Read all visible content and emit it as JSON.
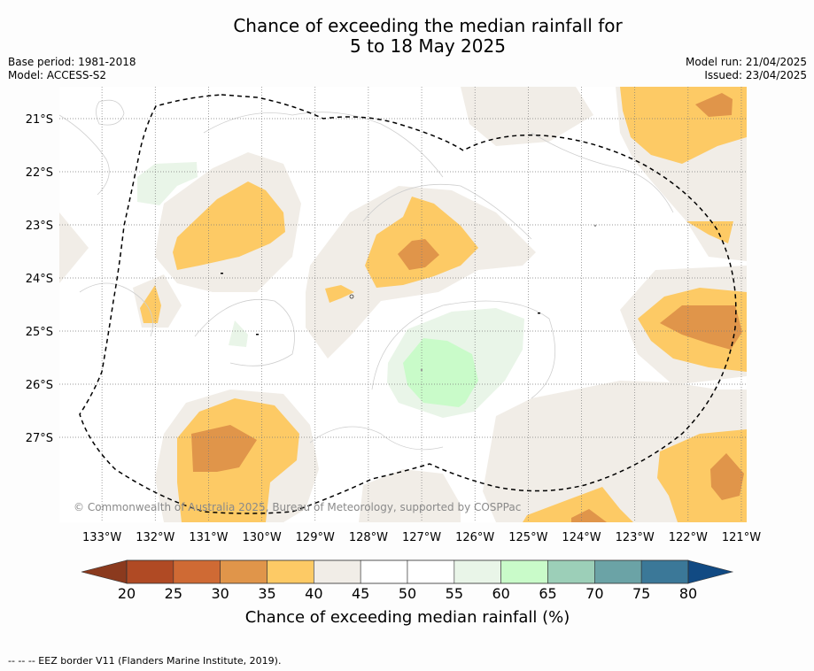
{
  "title": {
    "line1": "Chance of exceeding the median rainfall for",
    "line2": "5 to 18 May 2025"
  },
  "info_left": {
    "base_period": "Base period: 1981-2018",
    "model": "Model: ACCESS-S2"
  },
  "info_right": {
    "model_run": "Model run: 21/04/2025",
    "issued": "Issued: 23/04/2025"
  },
  "map": {
    "lon_range": [
      -133.8,
      -120.9
    ],
    "lat_range": [
      -28.6,
      -20.4
    ],
    "lat_ticks": [
      {
        "value": -21,
        "label": "21°S"
      },
      {
        "value": -22,
        "label": "22°S"
      },
      {
        "value": -23,
        "label": "23°S"
      },
      {
        "value": -24,
        "label": "24°S"
      },
      {
        "value": -25,
        "label": "25°S"
      },
      {
        "value": -26,
        "label": "26°S"
      },
      {
        "value": -27,
        "label": "27°S"
      }
    ],
    "lon_ticks": [
      {
        "value": -133,
        "label": "133°W"
      },
      {
        "value": -132,
        "label": "132°W"
      },
      {
        "value": -131,
        "label": "131°W"
      },
      {
        "value": -130,
        "label": "130°W"
      },
      {
        "value": -129,
        "label": "129°W"
      },
      {
        "value": -128,
        "label": "128°W"
      },
      {
        "value": -127,
        "label": "127°W"
      },
      {
        "value": -126,
        "label": "126°W"
      },
      {
        "value": -125,
        "label": "125°W"
      },
      {
        "value": -124,
        "label": "124°W"
      },
      {
        "value": -123,
        "label": "123°W"
      },
      {
        "value": -122,
        "label": "122°W"
      },
      {
        "value": -121,
        "label": "121°W"
      }
    ],
    "copyright": "© Commonwealth of Australia 2025, Bureau of Meteorology, supported by COSPPac"
  },
  "colorbar": {
    "label": "Chance of exceeding median rainfall (%)",
    "ticks": [
      "20",
      "25",
      "30",
      "35",
      "40",
      "45",
      "50",
      "55",
      "60",
      "65",
      "70",
      "75",
      "80"
    ],
    "colors": [
      "#b04a24",
      "#cf6a34",
      "#e0954a",
      "#fdca65",
      "#f1ede7",
      "#ffffff",
      "#ffffff",
      "#e9f5e8",
      "#c9fbc9",
      "#9ccfb8",
      "#6ba3a6",
      "#3b7898"
    ],
    "under_color": "#8b3a1e",
    "over_color": "#114a83"
  },
  "footnote": "--  --  -- EEZ border V11 (Flanders Marine Institute, 2019)."
}
